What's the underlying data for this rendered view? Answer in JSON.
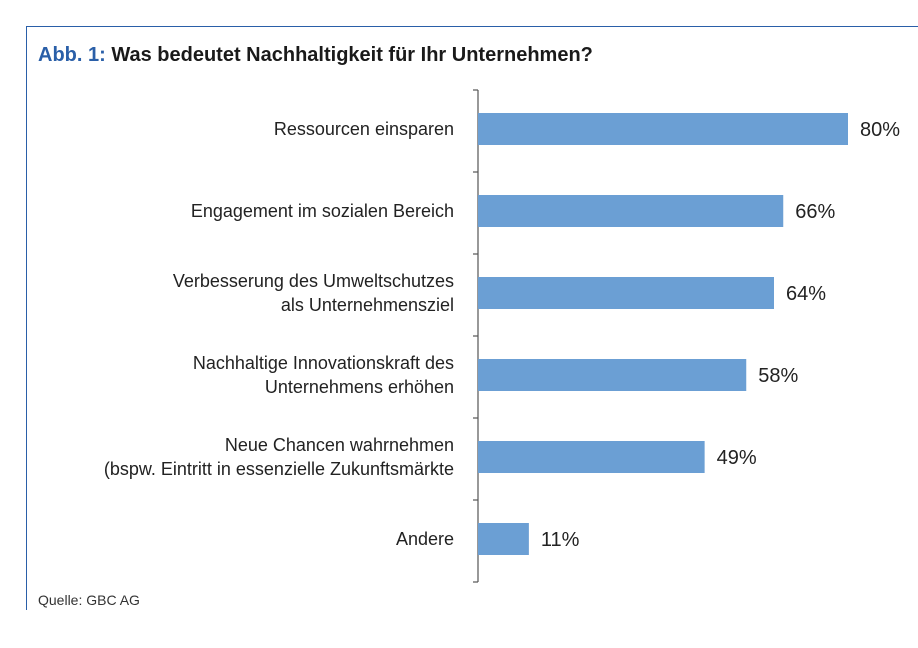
{
  "figure": {
    "title_prefix": "Abb. 1:",
    "title": "Was bedeutet Nachhaltigkeit für Ihr Unternehmen?",
    "source": "Quelle: GBC AG"
  },
  "colors": {
    "bar": "#6b9fd4",
    "accent": "#2a5fa8"
  },
  "chart_data": {
    "type": "bar",
    "orientation": "horizontal",
    "categories": [
      [
        "Ressourcen einsparen"
      ],
      [
        "Engagement im sozialen Bereich"
      ],
      [
        "Verbesserung des Umweltschutzes",
        "als Unternehmensziel"
      ],
      [
        "Nachhaltige Innovationskraft des",
        "Unternehmens erhöhen"
      ],
      [
        "Neue Chancen wahrnehmen",
        "(bspw. Eintritt in essenzielle Zukunftsmärkte"
      ],
      [
        "Andere"
      ]
    ],
    "values": [
      80,
      66,
      64,
      58,
      49,
      11
    ],
    "value_labels": [
      "80%",
      "66%",
      "64%",
      "58%",
      "49%",
      "11%"
    ],
    "xlim": [
      0,
      100
    ],
    "grid": false,
    "legend": "none"
  }
}
